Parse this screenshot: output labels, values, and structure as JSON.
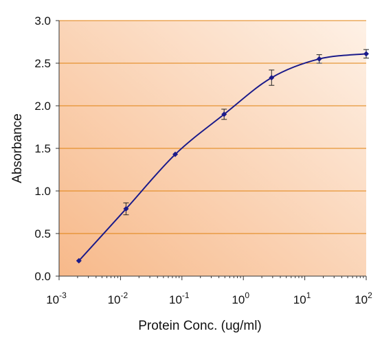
{
  "chart_data": {
    "type": "line",
    "title": "",
    "xlabel": "Protein Conc. (ug/ml)",
    "ylabel": "Absorbance",
    "x_scale": "log",
    "xlim": [
      0.001,
      100
    ],
    "ylim": [
      0,
      3.0
    ],
    "x_ticks": [
      {
        "value": 0.001,
        "base": "10",
        "exp": "-3"
      },
      {
        "value": 0.01,
        "base": "10",
        "exp": "-2"
      },
      {
        "value": 0.1,
        "base": "10",
        "exp": "-1"
      },
      {
        "value": 1,
        "base": "10",
        "exp": "0"
      },
      {
        "value": 10,
        "base": "10",
        "exp": "1"
      },
      {
        "value": 100,
        "base": "10",
        "exp": "2"
      }
    ],
    "y_ticks": [
      {
        "value": 0.0,
        "label": "0.0"
      },
      {
        "value": 0.5,
        "label": "0.5"
      },
      {
        "value": 1.0,
        "label": "1.0"
      },
      {
        "value": 1.5,
        "label": "1.5"
      },
      {
        "value": 2.0,
        "label": "2.0"
      },
      {
        "value": 2.5,
        "label": "2.5"
      },
      {
        "value": 3.0,
        "label": "3.0"
      }
    ],
    "grid": "horizontal",
    "legend": "none",
    "series": [
      {
        "points": [
          {
            "x": 0.0021,
            "y": 0.18,
            "err": 0.0
          },
          {
            "x": 0.0123,
            "y": 0.79,
            "err": 0.07
          },
          {
            "x": 0.0778,
            "y": 1.43,
            "err": 0.0
          },
          {
            "x": 0.486,
            "y": 1.9,
            "err": 0.06
          },
          {
            "x": 2.88,
            "y": 2.33,
            "err": 0.09
          },
          {
            "x": 17.2,
            "y": 2.55,
            "err": 0.05
          },
          {
            "x": 100,
            "y": 2.61,
            "err": 0.05
          }
        ]
      }
    ],
    "colors": {
      "line": "#1a1a8a",
      "marker": "#1a1a8a",
      "error_bar": "#222222",
      "grid": "#e0820f",
      "axis": "#333333",
      "plot_bg_start": "#f7b98a",
      "plot_bg_end": "#fef1e6"
    }
  }
}
